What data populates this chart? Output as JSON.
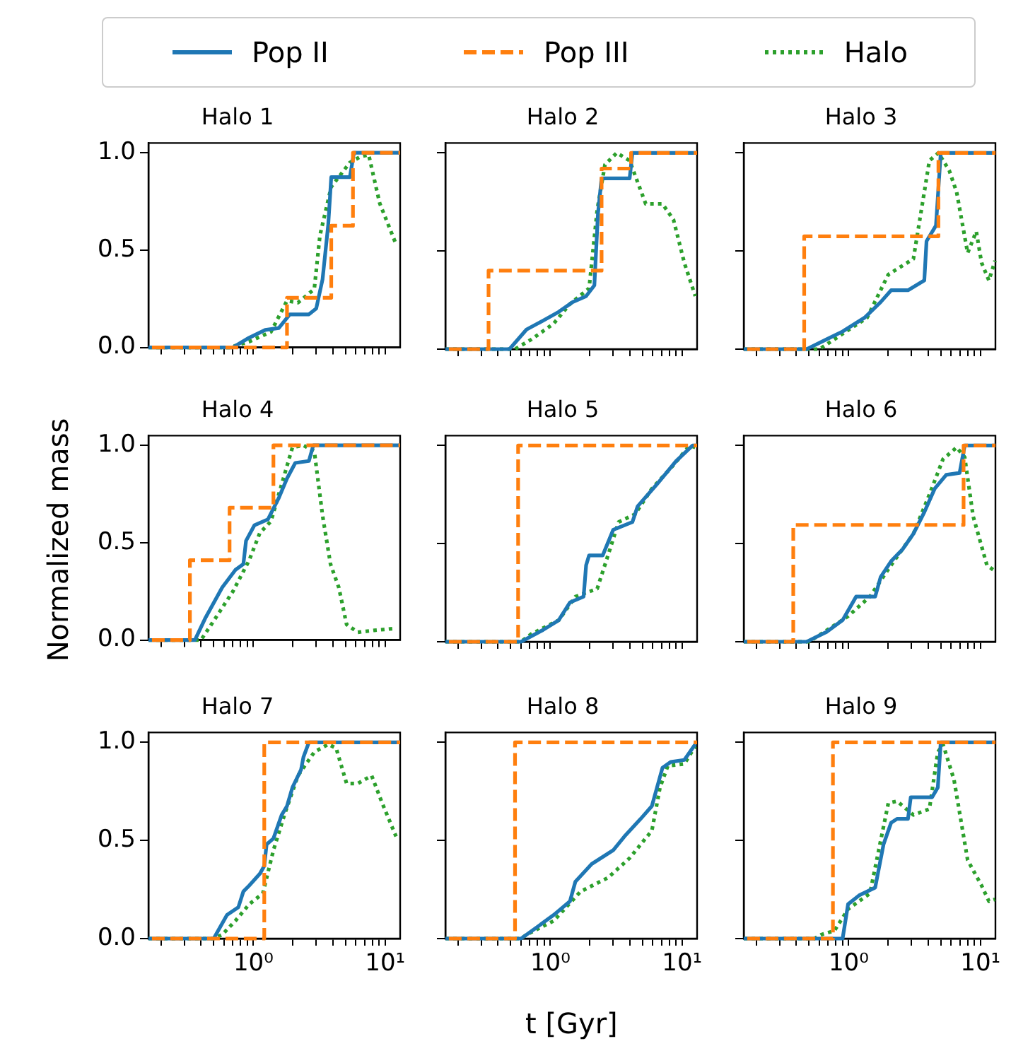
{
  "chart_data": [
    {
      "type": "line",
      "title": "Halo 1",
      "legend": "top",
      "log": "x",
      "tick_labels": "y",
      "xlim": [
        0.16,
        13
      ],
      "xticks": [
        {
          "value": 0.2,
          "label": null
        },
        {
          "value": 0.3,
          "label": null
        },
        {
          "value": 0.4,
          "label": null
        },
        {
          "value": 0.5,
          "label": null
        },
        {
          "value": 0.6,
          "label": null
        },
        {
          "value": 0.7,
          "label": null
        },
        {
          "value": 0.8,
          "label": null
        },
        {
          "value": 0.9,
          "label": null
        },
        {
          "value": 1,
          "label": null
        },
        {
          "value": 2,
          "label": null
        },
        {
          "value": 3,
          "label": null
        },
        {
          "value": 4,
          "label": null
        },
        {
          "value": 5,
          "label": null
        },
        {
          "value": 6,
          "label": null
        },
        {
          "value": 7,
          "label": null
        },
        {
          "value": 8,
          "label": null
        },
        {
          "value": 9,
          "label": null
        },
        {
          "value": 10,
          "label": null
        }
      ],
      "ylim": [
        0,
        1.05
      ],
      "yticks": [
        {
          "value": 0,
          "label": "0.0"
        },
        {
          "value": 0.5,
          "label": "0.5"
        },
        {
          "value": 1,
          "label": "1.0"
        }
      ],
      "series": [
        {
          "name": "Pop II",
          "type": "line",
          "line_style": "solid",
          "color": "#1f77b4",
          "x": [
            0.16,
            0.7,
            0.93,
            1.23,
            1.56,
            1.89,
            2.64,
            3.0,
            3.35,
            3.7,
            3.9,
            5.4,
            5.8,
            13
          ],
          "values": [
            0,
            0,
            0.05,
            0.09,
            0.1,
            0.17,
            0.17,
            0.2,
            0.35,
            0.63,
            0.875,
            0.875,
            1,
            1
          ]
        },
        {
          "name": "Pop III",
          "type": "step",
          "line_style": "dashed",
          "color": "#ff7f0e",
          "x": [
            0.17,
            1.8,
            3.9,
            5.7,
            13
          ],
          "values": [
            0,
            0.255,
            0.625,
            1,
            1
          ]
        },
        {
          "name": "Halo",
          "type": "line",
          "line_style": "dotted",
          "color": "#2ca02c",
          "x": [
            0.16,
            0.66,
            0.93,
            1.36,
            1.8,
            2.18,
            2.9,
            3.2,
            3.9,
            4.5,
            5.4,
            6.5,
            7.5,
            9.1,
            12.1
          ],
          "values": [
            0,
            0,
            0.03,
            0.08,
            0.24,
            0.23,
            0.3,
            0.575,
            0.825,
            0.88,
            0.95,
            0.98,
            0.99,
            0.74,
            0.53
          ]
        }
      ]
    },
    {
      "type": "line",
      "title": "Halo 2",
      "log": "x",
      "tick_labels": false,
      "xlim": [
        0.16,
        13
      ],
      "xticks": [
        {
          "value": 0.2,
          "label": null
        },
        {
          "value": 0.3,
          "label": null
        },
        {
          "value": 0.4,
          "label": null
        },
        {
          "value": 0.5,
          "label": null
        },
        {
          "value": 0.6,
          "label": null
        },
        {
          "value": 0.7,
          "label": null
        },
        {
          "value": 0.8,
          "label": null
        },
        {
          "value": 0.9,
          "label": null
        },
        {
          "value": 1,
          "label": null
        },
        {
          "value": 2,
          "label": null
        },
        {
          "value": 3,
          "label": null
        },
        {
          "value": 4,
          "label": null
        },
        {
          "value": 5,
          "label": null
        },
        {
          "value": 6,
          "label": null
        },
        {
          "value": 7,
          "label": null
        },
        {
          "value": 8,
          "label": null
        },
        {
          "value": 9,
          "label": null
        },
        {
          "value": 10,
          "label": null
        }
      ],
      "ylim": [
        0,
        1.05
      ],
      "yticks": [
        {
          "value": 0,
          "label": null
        },
        {
          "value": 0.5,
          "label": null
        },
        {
          "value": 1,
          "label": null
        }
      ],
      "series": [
        {
          "type": "line",
          "line_style": "solid",
          "color": "#1f77b4",
          "x": [
            0.16,
            0.49,
            0.66,
            0.88,
            1.16,
            1.48,
            1.87,
            2.16,
            2.3,
            2.45,
            4.0,
            4.2,
            13
          ],
          "values": [
            0,
            0,
            0.1,
            0.145,
            0.19,
            0.24,
            0.27,
            0.325,
            0.69,
            0.87,
            0.87,
            1,
            1
          ]
        },
        {
          "type": "step",
          "line_style": "dashed",
          "color": "#ff7f0e",
          "x": [
            0.17,
            0.34,
            2.45,
            4.1,
            13
          ],
          "values": [
            0,
            0.4,
            0.92,
            1,
            1
          ]
        },
        {
          "type": "line",
          "line_style": "dotted",
          "color": "#2ca02c",
          "x": [
            0.16,
            0.54,
            0.72,
            1.06,
            1.41,
            1.97,
            2.27,
            2.6,
            3.2,
            4.0,
            5.3,
            7.1,
            8.6,
            10.4,
            12.6
          ],
          "values": [
            0,
            0,
            0.05,
            0.13,
            0.23,
            0.31,
            0.71,
            0.94,
            1.0,
            0.96,
            0.74,
            0.74,
            0.66,
            0.44,
            0.27
          ]
        }
      ]
    },
    {
      "type": "line",
      "title": "Halo 3",
      "log": "x",
      "tick_labels": false,
      "xlim": [
        0.16,
        13
      ],
      "xticks": [
        {
          "value": 0.2,
          "label": null
        },
        {
          "value": 0.3,
          "label": null
        },
        {
          "value": 0.4,
          "label": null
        },
        {
          "value": 0.5,
          "label": null
        },
        {
          "value": 0.6,
          "label": null
        },
        {
          "value": 0.7,
          "label": null
        },
        {
          "value": 0.8,
          "label": null
        },
        {
          "value": 0.9,
          "label": null
        },
        {
          "value": 1,
          "label": null
        },
        {
          "value": 2,
          "label": null
        },
        {
          "value": 3,
          "label": null
        },
        {
          "value": 4,
          "label": null
        },
        {
          "value": 5,
          "label": null
        },
        {
          "value": 6,
          "label": null
        },
        {
          "value": 7,
          "label": null
        },
        {
          "value": 8,
          "label": null
        },
        {
          "value": 9,
          "label": null
        },
        {
          "value": 10,
          "label": null
        }
      ],
      "ylim": [
        0,
        1.05
      ],
      "yticks": [
        {
          "value": 0,
          "label": null
        },
        {
          "value": 0.5,
          "label": null
        },
        {
          "value": 1,
          "label": null
        }
      ],
      "series": [
        {
          "type": "line",
          "line_style": "solid",
          "color": "#1f77b4",
          "x": [
            0.16,
            0.48,
            0.68,
            0.9,
            1.32,
            1.75,
            2.1,
            2.82,
            3.75,
            3.9,
            4.6,
            5.0,
            13
          ],
          "values": [
            0,
            0,
            0.05,
            0.09,
            0.16,
            0.24,
            0.3,
            0.3,
            0.35,
            0.55,
            0.63,
            1,
            1
          ]
        },
        {
          "type": "step",
          "line_style": "dashed",
          "color": "#ff7f0e",
          "x": [
            0.17,
            0.46,
            4.8,
            13
          ],
          "values": [
            0,
            0.575,
            1,
            1
          ]
        },
        {
          "type": "line",
          "line_style": "dotted",
          "color": "#2ca02c",
          "x": [
            0.16,
            0.6,
            0.82,
            1.38,
            2.0,
            3.1,
            3.75,
            4.1,
            4.8,
            5.8,
            6.6,
            8.0,
            9.3,
            10.2,
            11.6,
            12.9
          ],
          "values": [
            0,
            0,
            0.06,
            0.16,
            0.38,
            0.46,
            0.8,
            0.96,
            1.0,
            0.91,
            0.8,
            0.49,
            0.6,
            0.44,
            0.35,
            0.45
          ]
        }
      ]
    },
    {
      "type": "line",
      "title": "Halo 4",
      "ylabel": "Normalized mass",
      "log": "x",
      "tick_labels": "y",
      "xlim": [
        0.16,
        13
      ],
      "xticks": [
        {
          "value": 0.2,
          "label": null
        },
        {
          "value": 0.3,
          "label": null
        },
        {
          "value": 0.4,
          "label": null
        },
        {
          "value": 0.5,
          "label": null
        },
        {
          "value": 0.6,
          "label": null
        },
        {
          "value": 0.7,
          "label": null
        },
        {
          "value": 0.8,
          "label": null
        },
        {
          "value": 0.9,
          "label": null
        },
        {
          "value": 1,
          "label": null
        },
        {
          "value": 2,
          "label": null
        },
        {
          "value": 3,
          "label": null
        },
        {
          "value": 4,
          "label": null
        },
        {
          "value": 5,
          "label": null
        },
        {
          "value": 6,
          "label": null
        },
        {
          "value": 7,
          "label": null
        },
        {
          "value": 8,
          "label": null
        },
        {
          "value": 9,
          "label": null
        },
        {
          "value": 10,
          "label": null
        }
      ],
      "ylim": [
        0,
        1.05
      ],
      "yticks": [
        {
          "value": 0,
          "label": "0.0"
        },
        {
          "value": 0.5,
          "label": "0.5"
        },
        {
          "value": 1,
          "label": "1.0"
        }
      ],
      "series": [
        {
          "type": "line",
          "line_style": "solid",
          "color": "#1f77b4",
          "x": [
            0.16,
            0.36,
            0.43,
            0.58,
            0.73,
            0.84,
            0.88,
            1.02,
            1.29,
            1.56,
            1.8,
            2.08,
            2.64,
            2.85,
            13
          ],
          "values": [
            0,
            0,
            0.11,
            0.27,
            0.36,
            0.39,
            0.51,
            0.59,
            0.62,
            0.73,
            0.83,
            0.91,
            0.92,
            1,
            1
          ]
        },
        {
          "type": "step",
          "line_style": "dashed",
          "color": "#ff7f0e",
          "x": [
            0.17,
            0.33,
            0.66,
            1.42,
            13
          ],
          "values": [
            0,
            0.41,
            0.68,
            1,
            1
          ]
        },
        {
          "type": "line",
          "line_style": "dotted",
          "color": "#2ca02c",
          "x": [
            0.16,
            0.4,
            0.48,
            0.7,
            0.93,
            1.12,
            1.36,
            1.64,
            1.98,
            2.4,
            2.9,
            3.35,
            3.85,
            4.45,
            5.1,
            6.2,
            8.3,
            12.1
          ],
          "values": [
            0,
            0,
            0.08,
            0.25,
            0.41,
            0.55,
            0.61,
            0.8,
            0.99,
            1.0,
            0.97,
            0.64,
            0.39,
            0.27,
            0.08,
            0.04,
            0.05,
            0.06
          ]
        }
      ]
    },
    {
      "type": "line",
      "title": "Halo 5",
      "log": "x",
      "tick_labels": false,
      "xlim": [
        0.16,
        13
      ],
      "xticks": [
        {
          "value": 0.2,
          "label": null
        },
        {
          "value": 0.3,
          "label": null
        },
        {
          "value": 0.4,
          "label": null
        },
        {
          "value": 0.5,
          "label": null
        },
        {
          "value": 0.6,
          "label": null
        },
        {
          "value": 0.7,
          "label": null
        },
        {
          "value": 0.8,
          "label": null
        },
        {
          "value": 0.9,
          "label": null
        },
        {
          "value": 1,
          "label": null
        },
        {
          "value": 2,
          "label": null
        },
        {
          "value": 3,
          "label": null
        },
        {
          "value": 4,
          "label": null
        },
        {
          "value": 5,
          "label": null
        },
        {
          "value": 6,
          "label": null
        },
        {
          "value": 7,
          "label": null
        },
        {
          "value": 8,
          "label": null
        },
        {
          "value": 9,
          "label": null
        },
        {
          "value": 10,
          "label": null
        }
      ],
      "ylim": [
        0,
        1.05
      ],
      "yticks": [
        {
          "value": 0,
          "label": null
        },
        {
          "value": 0.5,
          "label": null
        },
        {
          "value": 1,
          "label": null
        }
      ],
      "series": [
        {
          "type": "line",
          "line_style": "solid",
          "color": "#1f77b4",
          "x": [
            0.16,
            0.6,
            0.88,
            1.16,
            1.41,
            1.79,
            1.87,
            1.97,
            2.5,
            3.0,
            4.2,
            4.6,
            6.4,
            9.0,
            12.0,
            13
          ],
          "values": [
            0,
            0,
            0.06,
            0.11,
            0.2,
            0.23,
            0.39,
            0.44,
            0.44,
            0.57,
            0.61,
            0.69,
            0.8,
            0.92,
            1,
            1
          ]
        },
        {
          "type": "step",
          "line_style": "dashed",
          "color": "#ff7f0e",
          "x": [
            0.17,
            0.57,
            13
          ],
          "values": [
            0,
            1,
            1
          ]
        },
        {
          "type": "line",
          "line_style": "dotted",
          "color": "#2ca02c",
          "x": [
            0.16,
            0.6,
            0.72,
            1.16,
            1.55,
            2.27,
            2.74,
            3.3,
            4.4,
            5.9,
            8.6,
            11.4,
            12.6
          ],
          "values": [
            0,
            0,
            0.04,
            0.11,
            0.23,
            0.27,
            0.44,
            0.61,
            0.65,
            0.78,
            0.9,
            1.0,
            0.99
          ]
        }
      ]
    },
    {
      "type": "line",
      "title": "Halo 6",
      "log": "x",
      "tick_labels": false,
      "xlim": [
        0.16,
        13
      ],
      "xticks": [
        {
          "value": 0.2,
          "label": null
        },
        {
          "value": 0.3,
          "label": null
        },
        {
          "value": 0.4,
          "label": null
        },
        {
          "value": 0.5,
          "label": null
        },
        {
          "value": 0.6,
          "label": null
        },
        {
          "value": 0.7,
          "label": null
        },
        {
          "value": 0.8,
          "label": null
        },
        {
          "value": 0.9,
          "label": null
        },
        {
          "value": 1,
          "label": null
        },
        {
          "value": 2,
          "label": null
        },
        {
          "value": 3,
          "label": null
        },
        {
          "value": 4,
          "label": null
        },
        {
          "value": 5,
          "label": null
        },
        {
          "value": 6,
          "label": null
        },
        {
          "value": 7,
          "label": null
        },
        {
          "value": 8,
          "label": null
        },
        {
          "value": 9,
          "label": null
        },
        {
          "value": 10,
          "label": null
        }
      ],
      "ylim": [
        0,
        1.05
      ],
      "yticks": [
        {
          "value": 0,
          "label": null
        },
        {
          "value": 0.5,
          "label": null
        },
        {
          "value": 1,
          "label": null
        }
      ],
      "series": [
        {
          "type": "line",
          "line_style": "solid",
          "color": "#1f77b4",
          "x": [
            0.16,
            0.48,
            0.68,
            0.9,
            1.14,
            1.59,
            1.75,
            2.1,
            2.56,
            3.1,
            3.75,
            4.5,
            5.5,
            6.95,
            7.6,
            13
          ],
          "values": [
            0,
            0,
            0.05,
            0.11,
            0.23,
            0.23,
            0.33,
            0.41,
            0.47,
            0.55,
            0.66,
            0.78,
            0.85,
            0.86,
            1,
            1
          ]
        },
        {
          "type": "step",
          "line_style": "dashed",
          "color": "#ff7f0e",
          "x": [
            0.17,
            0.38,
            7.45,
            13
          ],
          "values": [
            0,
            0.595,
            1,
            1
          ]
        },
        {
          "type": "line",
          "line_style": "dotted",
          "color": "#2ca02c",
          "x": [
            0.16,
            0.5,
            0.62,
            0.99,
            1.45,
            2.1,
            3.1,
            4.1,
            5.2,
            6.6,
            7.6,
            8.8,
            11.2,
            12.9
          ],
          "values": [
            0,
            0,
            0.04,
            0.13,
            0.23,
            0.39,
            0.55,
            0.75,
            0.93,
            0.99,
            0.94,
            0.64,
            0.39,
            0.36
          ]
        }
      ]
    },
    {
      "type": "line",
      "title": "Halo 7",
      "log": "x",
      "xlim": [
        0.16,
        13
      ],
      "xticks": [
        {
          "value": 0.2,
          "label": null
        },
        {
          "value": 0.3,
          "label": null
        },
        {
          "value": 0.4,
          "label": null
        },
        {
          "value": 0.5,
          "label": null
        },
        {
          "value": 0.6,
          "label": null
        },
        {
          "value": 0.7,
          "label": null
        },
        {
          "value": 0.8,
          "label": null
        },
        {
          "value": 0.9,
          "label": null
        },
        {
          "value": 1,
          "label": "10⁰"
        },
        {
          "value": 2,
          "label": null
        },
        {
          "value": 3,
          "label": null
        },
        {
          "value": 4,
          "label": null
        },
        {
          "value": 5,
          "label": null
        },
        {
          "value": 6,
          "label": null
        },
        {
          "value": 7,
          "label": null
        },
        {
          "value": 8,
          "label": null
        },
        {
          "value": 9,
          "label": null
        },
        {
          "value": 10,
          "label": "10¹"
        }
      ],
      "ylim": [
        0,
        1.05
      ],
      "yticks": [
        {
          "value": 0,
          "label": "0.0"
        },
        {
          "value": 0.5,
          "label": "0.5"
        },
        {
          "value": 1,
          "label": "1.0"
        }
      ],
      "series": [
        {
          "type": "line",
          "line_style": "solid",
          "color": "#1f77b4",
          "x": [
            0.16,
            0.5,
            0.63,
            0.77,
            0.84,
            0.93,
            1.12,
            1.21,
            1.26,
            1.42,
            1.64,
            1.8,
            1.98,
            2.3,
            2.4,
            2.64,
            13
          ],
          "values": [
            0,
            0,
            0.12,
            0.16,
            0.24,
            0.27,
            0.33,
            0.37,
            0.48,
            0.51,
            0.63,
            0.675,
            0.77,
            0.86,
            0.925,
            1,
            1
          ]
        },
        {
          "type": "step",
          "line_style": "dashed",
          "color": "#ff7f0e",
          "x": [
            0.17,
            1.21,
            13
          ],
          "values": [
            0,
            1,
            1
          ]
        },
        {
          "type": "line",
          "line_style": "dotted",
          "color": "#2ca02c",
          "x": [
            0.16,
            0.5,
            0.58,
            0.73,
            0.93,
            1.18,
            1.42,
            1.72,
            2.18,
            2.9,
            3.7,
            4.25,
            5.1,
            6.2,
            7.9,
            9.5,
            12.1
          ],
          "values": [
            0,
            0,
            0.02,
            0.09,
            0.175,
            0.23,
            0.45,
            0.63,
            0.83,
            0.95,
            0.99,
            0.97,
            0.79,
            0.79,
            0.83,
            0.69,
            0.52
          ]
        }
      ]
    },
    {
      "type": "line",
      "title": "Halo 8",
      "xlabel": "t [Gyr]",
      "log": "x",
      "tick_labels": "x",
      "xlim": [
        0.16,
        13
      ],
      "xticks": [
        {
          "value": 0.2,
          "label": null
        },
        {
          "value": 0.3,
          "label": null
        },
        {
          "value": 0.4,
          "label": null
        },
        {
          "value": 0.5,
          "label": null
        },
        {
          "value": 0.6,
          "label": null
        },
        {
          "value": 0.7,
          "label": null
        },
        {
          "value": 0.8,
          "label": null
        },
        {
          "value": 0.9,
          "label": null
        },
        {
          "value": 1,
          "label": "10⁰"
        },
        {
          "value": 2,
          "label": null
        },
        {
          "value": 3,
          "label": null
        },
        {
          "value": 4,
          "label": null
        },
        {
          "value": 5,
          "label": null
        },
        {
          "value": 6,
          "label": null
        },
        {
          "value": 7,
          "label": null
        },
        {
          "value": 8,
          "label": null
        },
        {
          "value": 9,
          "label": null
        },
        {
          "value": 10,
          "label": "10¹"
        }
      ],
      "ylim": [
        0,
        1.05
      ],
      "yticks": [
        {
          "value": 0,
          "label": null
        },
        {
          "value": 0.5,
          "label": null
        },
        {
          "value": 1,
          "label": null
        }
      ],
      "series": [
        {
          "type": "line",
          "line_style": "solid",
          "color": "#1f77b4",
          "x": [
            0.16,
            0.6,
            0.8,
            1.06,
            1.41,
            1.55,
            2.06,
            3.0,
            3.65,
            4.85,
            5.9,
            7.1,
            8.2,
            10.4,
            12.6
          ],
          "values": [
            0,
            0,
            0.06,
            0.12,
            0.19,
            0.29,
            0.38,
            0.45,
            0.52,
            0.61,
            0.675,
            0.87,
            0.9,
            0.91,
            0.99
          ]
        },
        {
          "type": "step",
          "line_style": "dashed",
          "color": "#ff7f0e",
          "x": [
            0.17,
            0.54,
            13
          ],
          "values": [
            0,
            1,
            1
          ]
        },
        {
          "type": "line",
          "line_style": "dotted",
          "color": "#2ca02c",
          "x": [
            0.16,
            0.6,
            0.66,
            1.06,
            1.7,
            2.74,
            4.0,
            5.9,
            6.8,
            7.8,
            10.4,
            12.6
          ],
          "values": [
            0,
            0,
            0.02,
            0.09,
            0.24,
            0.31,
            0.41,
            0.55,
            0.77,
            0.88,
            0.89,
            0.98
          ]
        }
      ]
    },
    {
      "type": "line",
      "title": "Halo 9",
      "log": "x",
      "tick_labels": "x",
      "xlim": [
        0.16,
        13
      ],
      "xticks": [
        {
          "value": 0.2,
          "label": null
        },
        {
          "value": 0.3,
          "label": null
        },
        {
          "value": 0.4,
          "label": null
        },
        {
          "value": 0.5,
          "label": null
        },
        {
          "value": 0.6,
          "label": null
        },
        {
          "value": 0.7,
          "label": null
        },
        {
          "value": 0.8,
          "label": null
        },
        {
          "value": 0.9,
          "label": null
        },
        {
          "value": 1,
          "label": "10⁰"
        },
        {
          "value": 2,
          "label": null
        },
        {
          "value": 3,
          "label": null
        },
        {
          "value": 4,
          "label": null
        },
        {
          "value": 5,
          "label": null
        },
        {
          "value": 6,
          "label": null
        },
        {
          "value": 7,
          "label": null
        },
        {
          "value": 8,
          "label": null
        },
        {
          "value": 9,
          "label": null
        },
        {
          "value": 10,
          "label": "10¹"
        }
      ],
      "ylim": [
        0,
        1.05
      ],
      "yticks": [
        {
          "value": 0,
          "label": null
        },
        {
          "value": 0.5,
          "label": null
        },
        {
          "value": 1,
          "label": null
        }
      ],
      "series": [
        {
          "type": "line",
          "line_style": "solid",
          "color": "#1f77b4",
          "x": [
            0.16,
            0.9,
            0.99,
            1.2,
            1.59,
            1.84,
            2.1,
            2.33,
            2.82,
            2.96,
            4.3,
            4.75,
            5.0,
            13
          ],
          "values": [
            0,
            0,
            0.175,
            0.22,
            0.26,
            0.48,
            0.59,
            0.61,
            0.61,
            0.72,
            0.72,
            0.77,
            1,
            1
          ]
        },
        {
          "type": "step",
          "line_style": "dashed",
          "color": "#ff7f0e",
          "x": [
            0.17,
            0.76,
            13
          ],
          "values": [
            0,
            1,
            1
          ]
        },
        {
          "type": "line",
          "line_style": "dotted",
          "color": "#2ca02c",
          "x": [
            0.16,
            0.55,
            0.62,
            0.78,
            0.99,
            1.45,
            2.0,
            2.33,
            3.1,
            4.1,
            4.75,
            5.2,
            6.3,
            8.0,
            10.2,
            11.6,
            12.9
          ],
          "values": [
            0,
            0,
            0.02,
            0.04,
            0.15,
            0.23,
            0.69,
            0.7,
            0.63,
            0.66,
            0.95,
            0.99,
            0.81,
            0.4,
            0.27,
            0.19,
            0.2
          ]
        }
      ]
    }
  ]
}
